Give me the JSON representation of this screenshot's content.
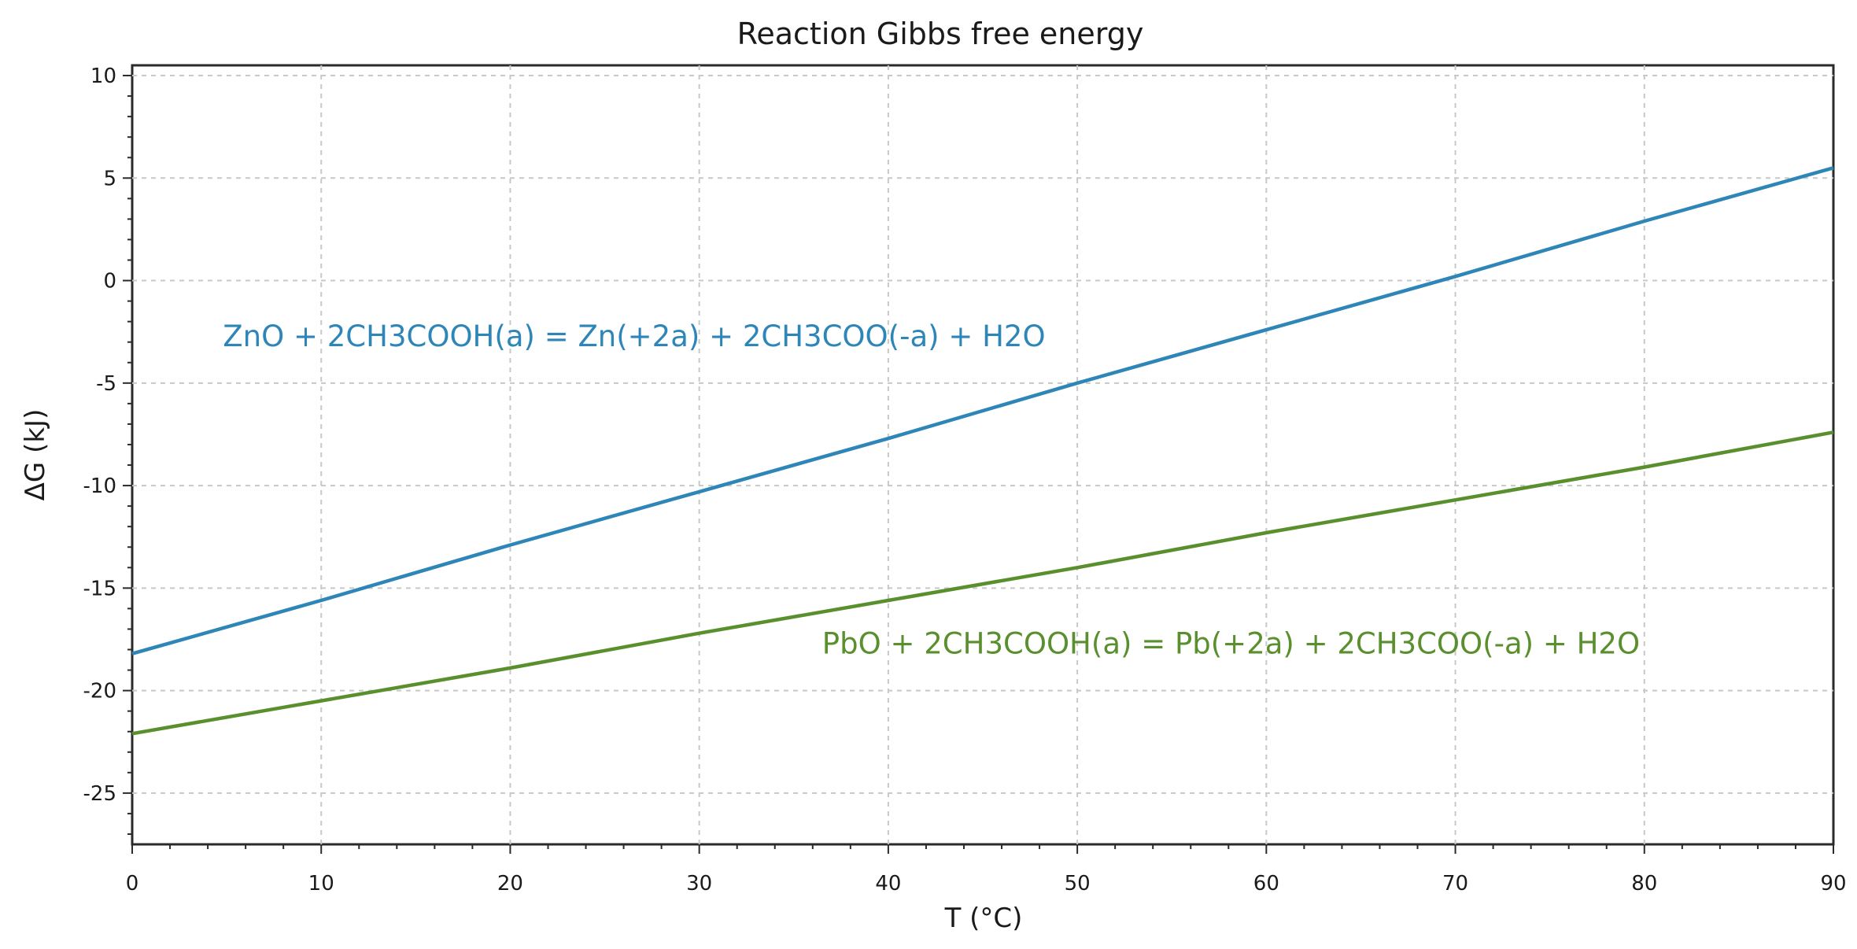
{
  "chart_data": {
    "type": "line",
    "title": "Reaction Gibbs free energy",
    "xlabel": "T (°C)",
    "ylabel": "ΔG (kJ)",
    "xlim": [
      0,
      90
    ],
    "ylim": [
      -27.5,
      10.5
    ],
    "xticks": [
      0,
      10,
      20,
      30,
      40,
      50,
      60,
      70,
      80,
      90
    ],
    "yticks": [
      10,
      5,
      0,
      -5,
      -10,
      -15,
      -20,
      -25
    ],
    "grid": true,
    "series": [
      {
        "name": "ZnO + 2CH3COOH(a) = Zn(+2a) + 2CH3COO(-a) + H2O",
        "color": "#2e86b8",
        "x": [
          0,
          10,
          20,
          30,
          40,
          50,
          60,
          70,
          80,
          90
        ],
        "y": [
          -18.2,
          -15.6,
          -12.9,
          -10.3,
          -7.7,
          -5.0,
          -2.4,
          0.2,
          2.9,
          5.5
        ]
      },
      {
        "name": "PbO + 2CH3COOH(a) = Pb(+2a) + 2CH3COO(-a) + H2O",
        "color": "#5a8f2e",
        "x": [
          0,
          10,
          20,
          30,
          40,
          50,
          60,
          70,
          80,
          90
        ],
        "y": [
          -22.1,
          -20.5,
          -18.9,
          -17.2,
          -15.6,
          -14.0,
          -12.3,
          -10.7,
          -9.1,
          -7.4
        ]
      }
    ],
    "annotations": [
      {
        "text": "ZnO + 2CH3COOH(a) = Zn(+2a) + 2CH3COO(-a) + H2O",
        "series": 0,
        "x": 4.8,
        "y": -3.2
      },
      {
        "text": "PbO + 2CH3COOH(a) = Pb(+2a) + 2CH3COO(-a) + H2O",
        "series": 1,
        "x": 36.5,
        "y": -18.2
      }
    ]
  }
}
